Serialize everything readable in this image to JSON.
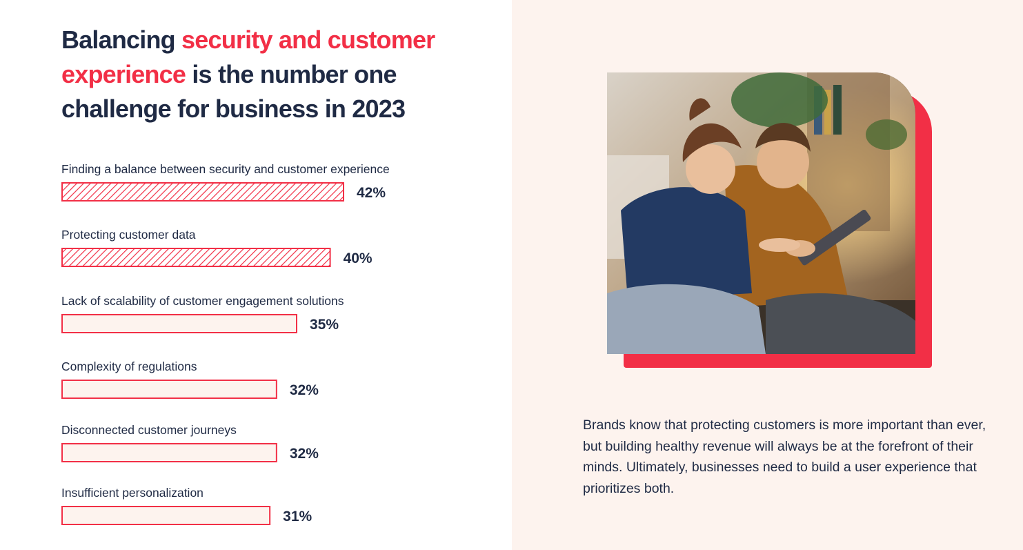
{
  "headline": {
    "part1": "Balancing ",
    "accent": "security and customer experience",
    "part2": " is the number one challenge for business in 2023"
  },
  "body_text": "Brands know that protecting customers is more important than ever, but building healthy revenue will always be at the forefront of their minds. Ultimately, businesses need to build a user experience that prioritizes both.",
  "photo": {
    "description_icon": "people-with-tablet-photo"
  },
  "colors": {
    "accent": "#f22f46",
    "text": "#1f2a44",
    "bar_fill_light": "#fdf3ee",
    "panel_bg": "#fdf3ee"
  },
  "chart_data": {
    "type": "bar",
    "orientation": "horizontal",
    "categories": [
      "Finding a balance between security and customer experience",
      "Protecting customer data",
      "Lack of scalability of customer engagement solutions",
      "Complexity of regulations",
      "Disconnected customer journeys",
      "Insufficient personalization"
    ],
    "values": [
      42,
      40,
      35,
      32,
      32,
      31
    ],
    "value_labels": [
      "42%",
      "40%",
      "35%",
      "32%",
      "32%",
      "31%"
    ],
    "highlighted": [
      true,
      true,
      false,
      false,
      false,
      false
    ],
    "unit": "%",
    "title": "",
    "xlabel": "",
    "ylabel": "",
    "grid": false,
    "legend": "none"
  }
}
